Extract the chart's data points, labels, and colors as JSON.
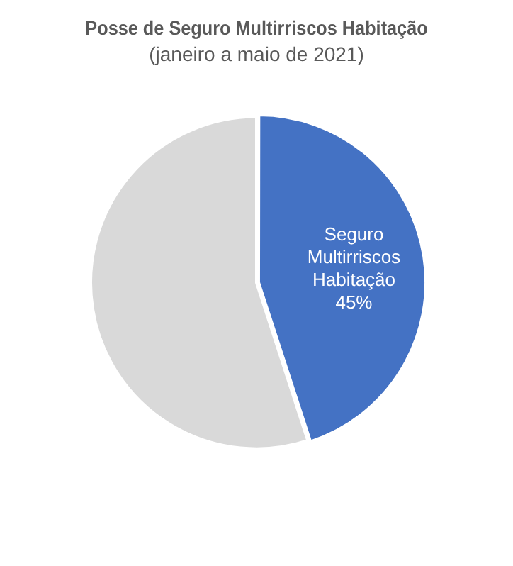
{
  "chart_data": {
    "type": "pie",
    "title": "Posse de Seguro Multirriscos Habitação",
    "subtitle": "(janeiro a maio de 2021)",
    "categories": [
      "Seguro Multirriscos Habitação",
      null
    ],
    "values": [
      45,
      55
    ],
    "colors": [
      "#4472c4",
      "#d9d9d9"
    ],
    "value_labels": [
      "45%",
      null
    ]
  }
}
